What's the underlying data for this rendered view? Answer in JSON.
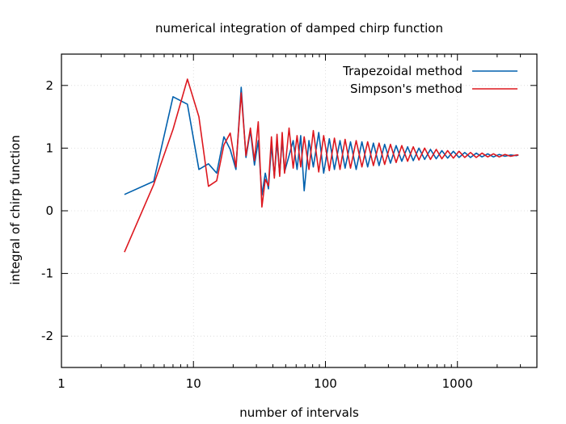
{
  "chart_data": {
    "type": "line",
    "title": "numerical integration of damped chirp function",
    "xlabel": "number of intervals",
    "ylabel": "integral of chirp function",
    "xscale": "log",
    "xlim": [
      1,
      4000
    ],
    "ylim": [
      -2.5,
      2.5
    ],
    "xticks": [
      1,
      10,
      100,
      1000
    ],
    "yticks": [
      -2,
      -1,
      0,
      1,
      2
    ],
    "grid": true,
    "legend_position": "top-right",
    "series": [
      {
        "name": "Trapezoidal method",
        "color": "#0060ad",
        "x": [
          3,
          5,
          7,
          9,
          11,
          13,
          15,
          17,
          19,
          21,
          23,
          25,
          27,
          29,
          31,
          33,
          35,
          37,
          39,
          41,
          43,
          45,
          47,
          49,
          53,
          57,
          61,
          65,
          69,
          75,
          81,
          89,
          97,
          107,
          117,
          129,
          141,
          155,
          171,
          189,
          209,
          231,
          255,
          281,
          311,
          343,
          379,
          419,
          463,
          511,
          565,
          625,
          691,
          763,
          843,
          931,
          1029,
          1137,
          1257,
          1389,
          1535,
          1697,
          1875,
          2073,
          2291,
          2533,
          2800,
          2900
        ],
        "y": [
          0.26,
          0.47,
          1.82,
          1.7,
          0.66,
          0.75,
          0.6,
          1.18,
          0.98,
          0.66,
          1.97,
          0.85,
          1.28,
          0.73,
          1.12,
          0.25,
          0.6,
          0.35,
          1.05,
          0.55,
          1.1,
          0.58,
          1.15,
          0.62,
          0.88,
          1.12,
          0.66,
          1.2,
          0.32,
          1.12,
          0.7,
          1.25,
          0.6,
          1.15,
          0.66,
          1.12,
          0.68,
          1.1,
          0.66,
          1.1,
          0.7,
          1.08,
          0.72,
          1.06,
          0.76,
          1.04,
          0.79,
          1.02,
          0.8,
          1.0,
          0.82,
          0.98,
          0.83,
          0.96,
          0.84,
          0.95,
          0.85,
          0.93,
          0.85,
          0.92,
          0.86,
          0.91,
          0.86,
          0.9,
          0.87,
          0.89,
          0.88,
          0.89
        ]
      },
      {
        "name": "Simpson's method",
        "color": "#dd181f",
        "x": [
          3,
          5,
          7,
          9,
          11,
          13,
          15,
          17,
          19,
          21,
          23,
          25,
          27,
          29,
          31,
          33,
          35,
          37,
          39,
          41,
          43,
          45,
          47,
          49,
          53,
          57,
          61,
          65,
          69,
          75,
          81,
          89,
          97,
          107,
          117,
          129,
          141,
          155,
          171,
          189,
          209,
          231,
          255,
          281,
          311,
          343,
          379,
          419,
          463,
          511,
          565,
          625,
          691,
          763,
          843,
          931,
          1029,
          1137,
          1257,
          1389,
          1535,
          1697,
          1875,
          2073,
          2291,
          2533,
          2800,
          2900
        ],
        "y": [
          -0.66,
          0.42,
          1.3,
          2.1,
          1.5,
          0.39,
          0.48,
          1.05,
          1.24,
          0.7,
          1.88,
          0.88,
          1.32,
          0.8,
          1.42,
          0.06,
          0.5,
          0.4,
          1.18,
          0.52,
          1.22,
          0.55,
          1.25,
          0.6,
          1.32,
          0.68,
          1.2,
          0.7,
          1.18,
          0.66,
          1.28,
          0.62,
          1.2,
          0.64,
          1.16,
          0.66,
          1.14,
          0.68,
          1.12,
          0.7,
          1.1,
          0.72,
          1.08,
          0.74,
          1.06,
          0.77,
          1.04,
          0.79,
          1.02,
          0.81,
          1.0,
          0.82,
          0.98,
          0.83,
          0.96,
          0.84,
          0.95,
          0.85,
          0.93,
          0.85,
          0.92,
          0.86,
          0.91,
          0.86,
          0.9,
          0.87,
          0.89,
          0.89
        ]
      }
    ]
  }
}
